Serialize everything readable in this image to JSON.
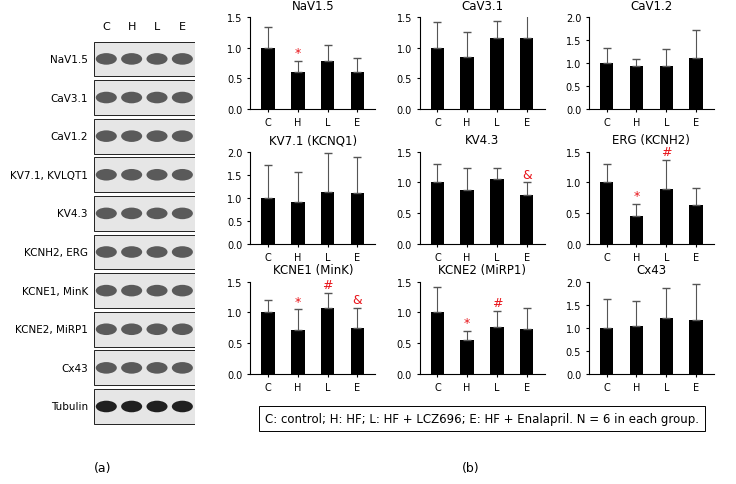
{
  "figure": {
    "panel_labels": [
      "(a)",
      "(b)"
    ],
    "note": "C: control; H: HF; L: HF + LCZ696; E: HF + Enalapril. N = 6 in each group."
  },
  "blot": {
    "lanes": [
      "C",
      "H",
      "L",
      "E"
    ],
    "rows": [
      "NaV1.5",
      "CaV3.1",
      "CaV1.2",
      "KV7.1, KVLQT1",
      "KV4.3",
      "KCNH2, ERG",
      "KCNE1, MinK",
      "KCNE2, MiRP1",
      "Cx43",
      "Tubulin"
    ]
  },
  "chart_data": [
    {
      "type": "bar",
      "title": "NaV1.5",
      "categories": [
        "C",
        "H",
        "L",
        "E"
      ],
      "values": [
        1.0,
        0.6,
        0.78,
        0.6
      ],
      "errors": [
        0.33,
        0.18,
        0.27,
        0.23
      ],
      "color": "#000000",
      "annotations": [
        null,
        "*",
        null,
        null
      ],
      "ylim": [
        0,
        1.5
      ],
      "yticks": [
        {
          "value": 0,
          "label": "0.0"
        },
        {
          "value": 0.5,
          "label": "0.5"
        },
        {
          "value": 1,
          "label": "1.0"
        },
        {
          "value": 1.5,
          "label": "1.5"
        }
      ]
    },
    {
      "type": "bar",
      "title": "CaV3.1",
      "categories": [
        "C",
        "H",
        "L",
        "E"
      ],
      "values": [
        1.0,
        0.85,
        1.15,
        1.15
      ],
      "errors": [
        0.42,
        0.4,
        0.28,
        0.42
      ],
      "color": "#000000",
      "annotations": [
        null,
        null,
        null,
        null
      ],
      "ylim": [
        0,
        1.5
      ],
      "yticks": [
        {
          "value": 0,
          "label": "0.0"
        },
        {
          "value": 0.5,
          "label": "0.5"
        },
        {
          "value": 1,
          "label": "1.0"
        },
        {
          "value": 1.5,
          "label": "1.5"
        }
      ]
    },
    {
      "type": "bar",
      "title": "CaV1.2",
      "categories": [
        "C",
        "H",
        "L",
        "E"
      ],
      "values": [
        1.0,
        0.93,
        0.93,
        1.1
      ],
      "errors": [
        0.33,
        0.15,
        0.38,
        0.62
      ],
      "color": "#000000",
      "annotations": [
        null,
        null,
        null,
        null
      ],
      "ylim": [
        0,
        2
      ],
      "yticks": [
        {
          "value": 0,
          "label": "0.0"
        },
        {
          "value": 0.5,
          "label": "0.5"
        },
        {
          "value": 1,
          "label": "1.0"
        },
        {
          "value": 1.5,
          "label": "1.5"
        },
        {
          "value": 2,
          "label": "2.0"
        }
      ]
    },
    {
      "type": "bar",
      "title": "KV7.1 (KCNQ1)",
      "categories": [
        "C",
        "H",
        "L",
        "E"
      ],
      "values": [
        1.0,
        0.92,
        1.13,
        1.1
      ],
      "errors": [
        0.72,
        0.65,
        0.85,
        0.78
      ],
      "color": "#000000",
      "annotations": [
        null,
        null,
        null,
        null
      ],
      "ylim": [
        0,
        2
      ],
      "yticks": [
        {
          "value": 0,
          "label": "0.0"
        },
        {
          "value": 0.5,
          "label": "0.5"
        },
        {
          "value": 1,
          "label": "1.0"
        },
        {
          "value": 1.5,
          "label": "1.5"
        },
        {
          "value": 2,
          "label": "2.0"
        }
      ]
    },
    {
      "type": "bar",
      "title": "KV4.3",
      "categories": [
        "C",
        "H",
        "L",
        "E"
      ],
      "values": [
        1.0,
        0.88,
        1.05,
        0.8
      ],
      "errors": [
        0.3,
        0.35,
        0.18,
        0.2
      ],
      "color": "#000000",
      "annotations": [
        null,
        null,
        null,
        "&"
      ],
      "ylim": [
        0,
        1.5
      ],
      "yticks": [
        {
          "value": 0,
          "label": "0.0"
        },
        {
          "value": 0.5,
          "label": "0.5"
        },
        {
          "value": 1,
          "label": "1.0"
        },
        {
          "value": 1.5,
          "label": "1.5"
        }
      ]
    },
    {
      "type": "bar",
      "title": "ERG (KCNH2)",
      "categories": [
        "C",
        "H",
        "L",
        "E"
      ],
      "values": [
        1.0,
        0.45,
        0.9,
        0.63
      ],
      "errors": [
        0.3,
        0.2,
        0.47,
        0.28
      ],
      "color": "#000000",
      "annotations": [
        null,
        "*",
        "#",
        null
      ],
      "ylim": [
        0,
        1.5
      ],
      "yticks": [
        {
          "value": 0,
          "label": "0.0"
        },
        {
          "value": 0.5,
          "label": "0.5"
        },
        {
          "value": 1,
          "label": "1.0"
        },
        {
          "value": 1.5,
          "label": "1.5"
        }
      ]
    },
    {
      "type": "bar",
      "title": "KCNE1 (MinK)",
      "categories": [
        "C",
        "H",
        "L",
        "E"
      ],
      "values": [
        1.0,
        0.72,
        1.07,
        0.75
      ],
      "errors": [
        0.2,
        0.33,
        0.25,
        0.33
      ],
      "color": "#000000",
      "annotations": [
        null,
        "*",
        "#",
        "&"
      ],
      "ylim": [
        0,
        1.5
      ],
      "yticks": [
        {
          "value": 0,
          "label": "0.0"
        },
        {
          "value": 0.5,
          "label": "0.5"
        },
        {
          "value": 1,
          "label": "1.0"
        },
        {
          "value": 1.5,
          "label": "1.5"
        }
      ]
    },
    {
      "type": "bar",
      "title": "KCNE2 (MiRP1)",
      "categories": [
        "C",
        "H",
        "L",
        "E"
      ],
      "values": [
        1.0,
        0.55,
        0.77,
        0.73
      ],
      "errors": [
        0.42,
        0.15,
        0.25,
        0.35
      ],
      "color": "#000000",
      "annotations": [
        null,
        "*",
        "#",
        null
      ],
      "ylim": [
        0,
        1.5
      ],
      "yticks": [
        {
          "value": 0,
          "label": "0.0"
        },
        {
          "value": 0.5,
          "label": "0.5"
        },
        {
          "value": 1,
          "label": "1.0"
        },
        {
          "value": 1.5,
          "label": "1.5"
        }
      ]
    },
    {
      "type": "bar",
      "title": "Cx43",
      "categories": [
        "C",
        "H",
        "L",
        "E"
      ],
      "values": [
        1.0,
        1.03,
        1.22,
        1.18
      ],
      "errors": [
        0.62,
        0.55,
        0.65,
        0.78
      ],
      "color": "#000000",
      "annotations": [
        null,
        null,
        null,
        null
      ],
      "ylim": [
        0,
        2
      ],
      "yticks": [
        {
          "value": 0,
          "label": "0.0"
        },
        {
          "value": 0.5,
          "label": "0.5"
        },
        {
          "value": 1,
          "label": "1.0"
        },
        {
          "value": 1.5,
          "label": "1.5"
        },
        {
          "value": 2,
          "label": "2.0"
        }
      ]
    }
  ]
}
